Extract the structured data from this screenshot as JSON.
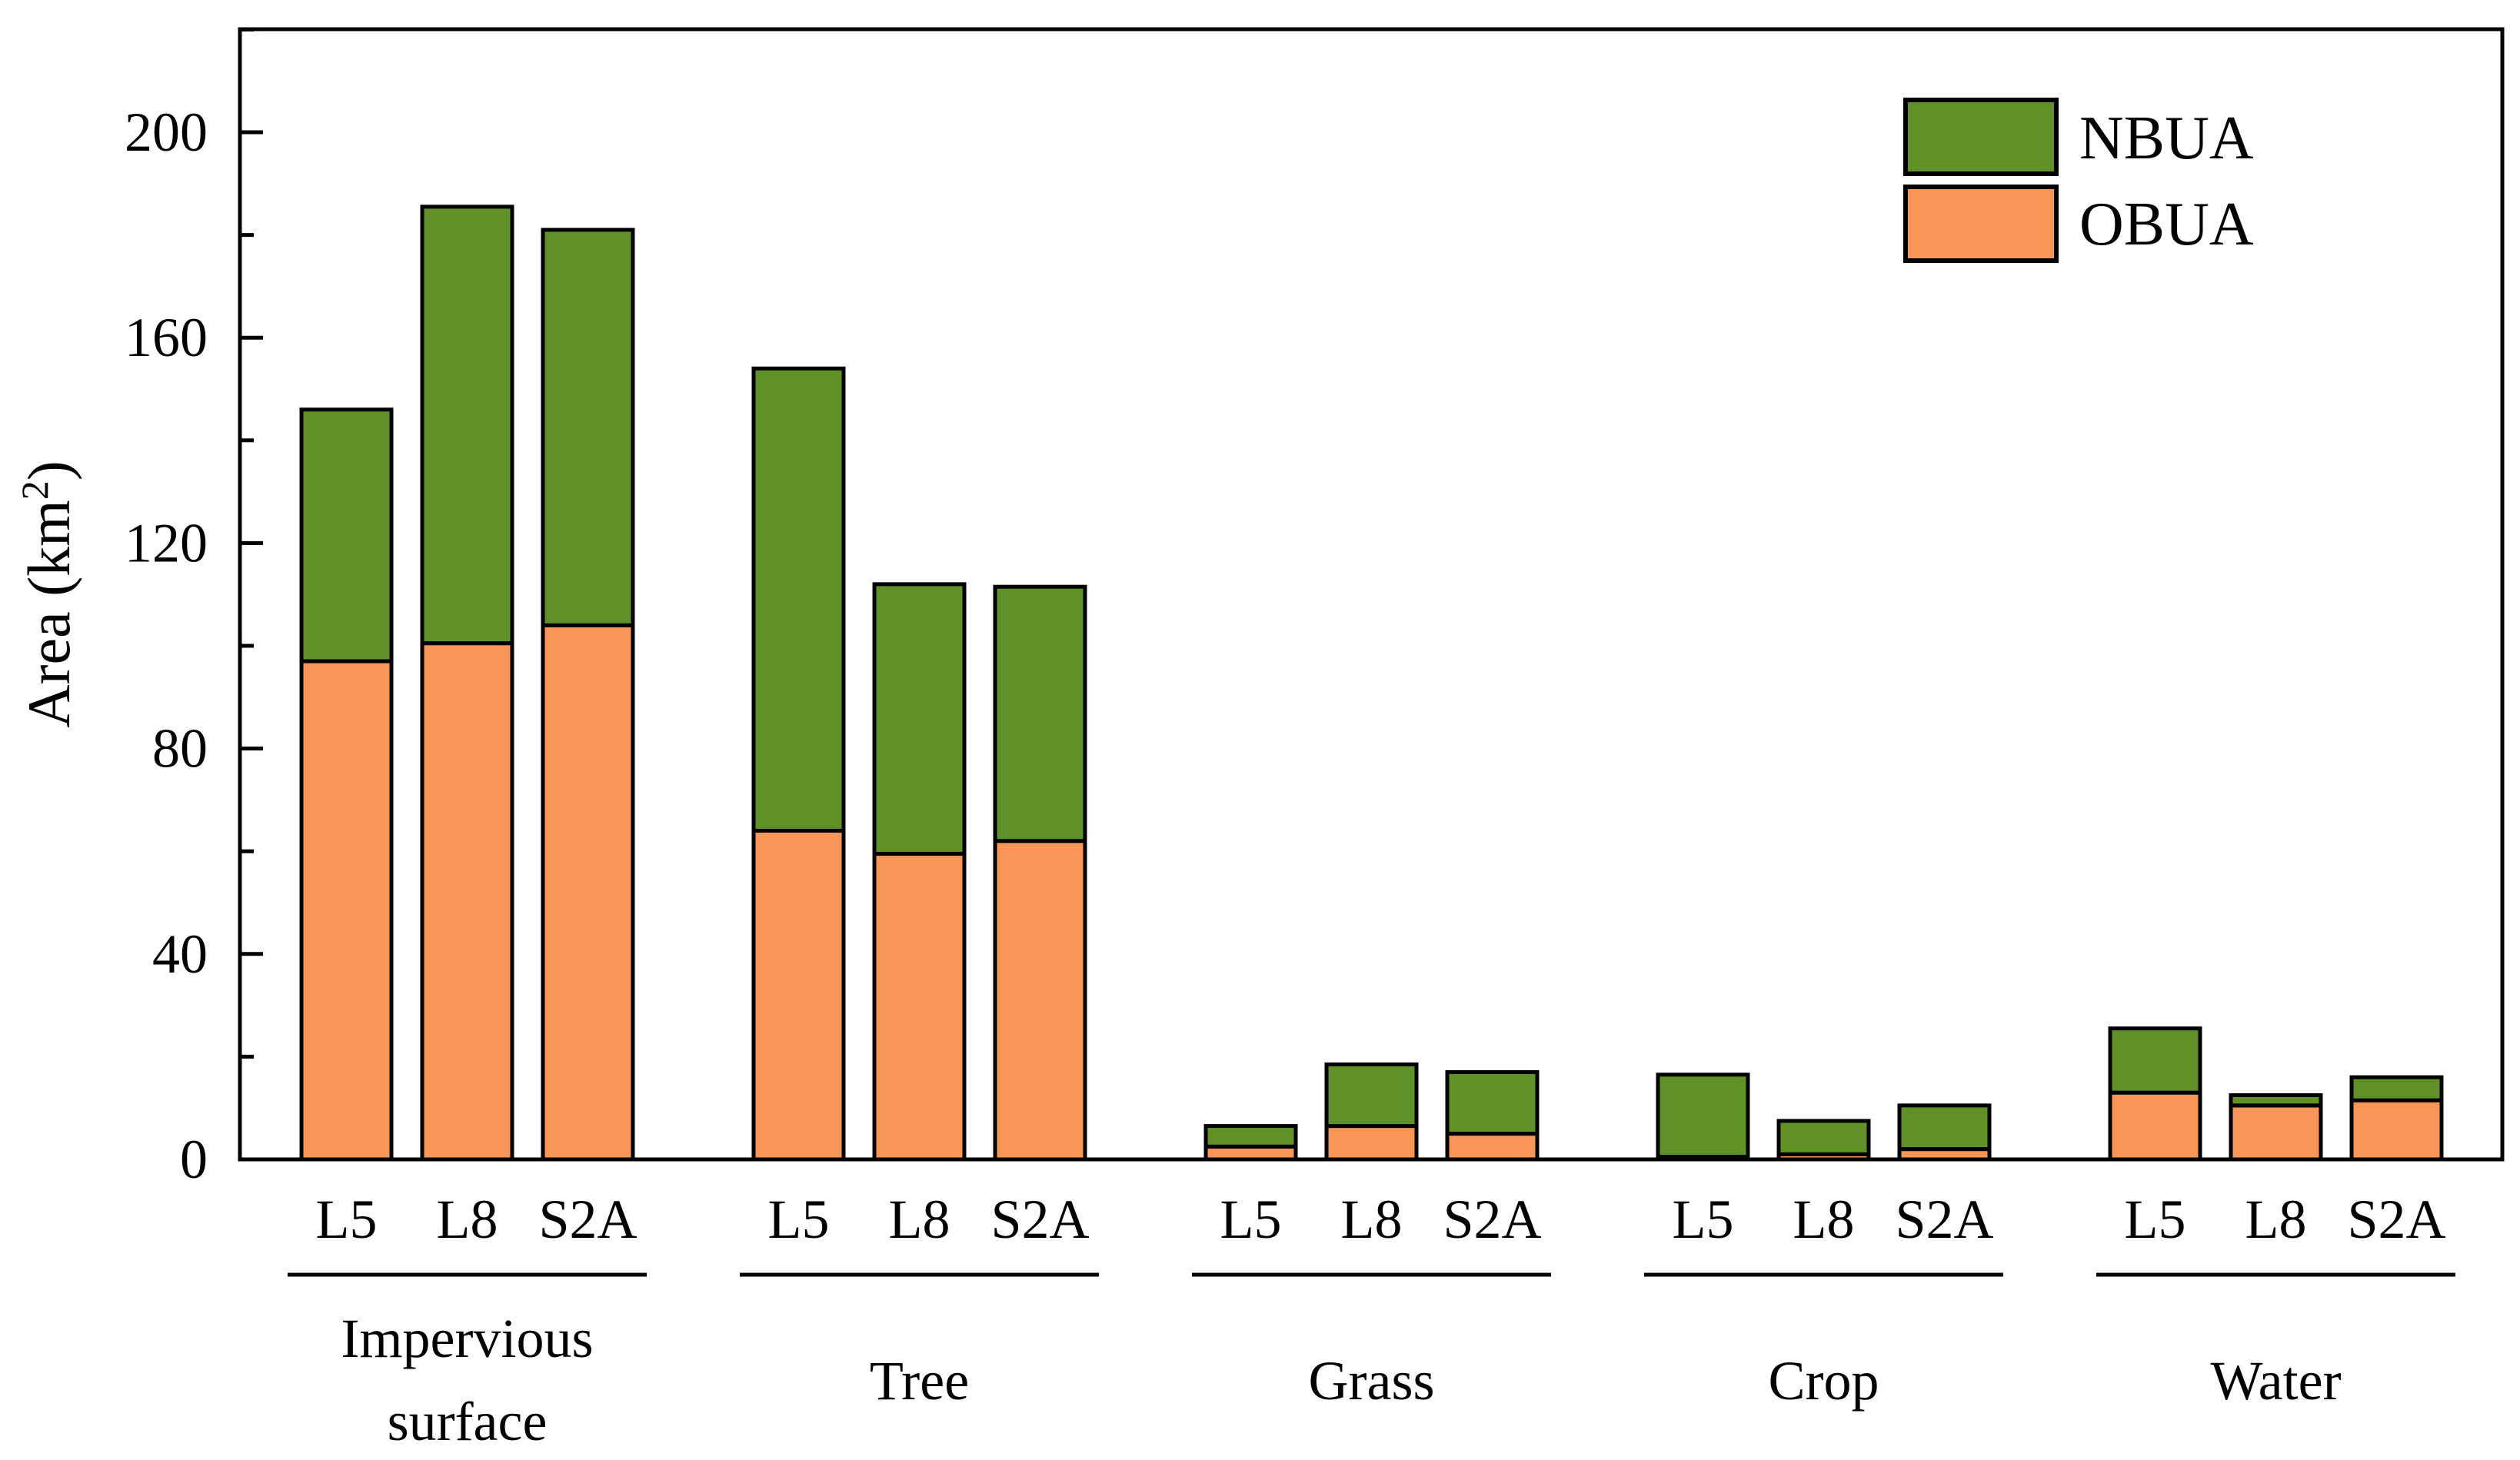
{
  "chart_data": {
    "type": "stacked-bar",
    "ylabel_main": "Area (km",
    "ylabel_sup": "2",
    "ylabel_close": ")",
    "ylim": [
      0,
      220
    ],
    "yticks": [
      0,
      40,
      80,
      120,
      160,
      200
    ],
    "yticks_labels": [
      "0",
      "40",
      "80",
      "120",
      "160",
      "200"
    ],
    "minor_yticks": [
      20,
      60,
      100,
      140,
      180,
      220
    ],
    "legend_position": "top-right",
    "groups": [
      {
        "label_lines": [
          "Impervious",
          "surface"
        ],
        "bars": [
          {
            "label": "L5",
            "OBUA": 97,
            "NBUA": 49
          },
          {
            "label": "L8",
            "OBUA": 100.5,
            "NBUA": 85
          },
          {
            "label": "S2A",
            "OBUA": 104,
            "NBUA": 77
          }
        ]
      },
      {
        "label_lines": [
          "Tree"
        ],
        "bars": [
          {
            "label": "L5",
            "OBUA": 64,
            "NBUA": 90
          },
          {
            "label": "L8",
            "OBUA": 59.5,
            "NBUA": 52.5
          },
          {
            "label": "S2A",
            "OBUA": 62,
            "NBUA": 49.5
          }
        ]
      },
      {
        "label_lines": [
          "Grass"
        ],
        "bars": [
          {
            "label": "L5",
            "OBUA": 2.5,
            "NBUA": 4
          },
          {
            "label": "L8",
            "OBUA": 6.5,
            "NBUA": 12
          },
          {
            "label": "S2A",
            "OBUA": 5,
            "NBUA": 12
          }
        ]
      },
      {
        "label_lines": [
          "Crop"
        ],
        "bars": [
          {
            "label": "L5",
            "OBUA": 0.5,
            "NBUA": 16
          },
          {
            "label": "L8",
            "OBUA": 1,
            "NBUA": 6.5
          },
          {
            "label": "S2A",
            "OBUA": 2,
            "NBUA": 8.5
          }
        ]
      },
      {
        "label_lines": [
          "Water"
        ],
        "bars": [
          {
            "label": "L5",
            "OBUA": 13,
            "NBUA": 12.5
          },
          {
            "label": "L8",
            "OBUA": 10.5,
            "NBUA": 2
          },
          {
            "label": "S2A",
            "OBUA": 11.5,
            "NBUA": 4.5
          }
        ]
      }
    ],
    "series": [
      {
        "name": "NBUA",
        "color": "#5f9128"
      },
      {
        "name": "OBUA",
        "color": "#f79656"
      }
    ]
  }
}
